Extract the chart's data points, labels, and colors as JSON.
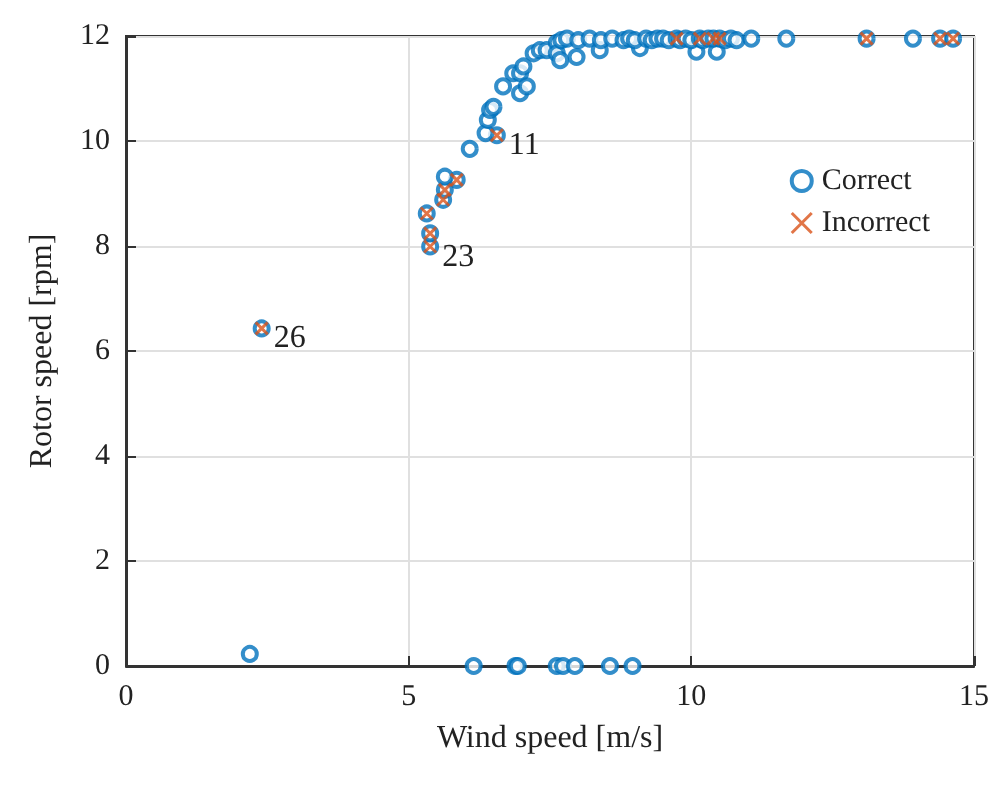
{
  "chart_data": {
    "type": "scatter",
    "xlabel": "Wind speed [m/s]",
    "ylabel": "Rotor speed [rpm]",
    "xlim": [
      0,
      15
    ],
    "xticks": [
      0,
      5,
      10,
      15
    ],
    "ylim": [
      0,
      12
    ],
    "yticks": [
      0,
      2,
      4,
      6,
      8,
      10,
      12
    ],
    "grid": true,
    "legend": "right",
    "series": [
      {
        "name": "Correct",
        "color": "#0072bd",
        "marker": "circle",
        "x": [
          2.19,
          6.15,
          6.89,
          6.93,
          7.62,
          7.73,
          7.94,
          8.56,
          8.96,
          2.4,
          5.38,
          5.38,
          5.32,
          5.61,
          5.64,
          5.85,
          5.64,
          6.56,
          6.08,
          6.36,
          6.4,
          6.44,
          6.5,
          6.67,
          6.85,
          6.97,
          7.03,
          6.97,
          7.09,
          7.21,
          7.32,
          7.44,
          7.62,
          7.62,
          7.68,
          7.97,
          8.38,
          9.09,
          10.09,
          10.45,
          7.7,
          7.8,
          8.0,
          8.2,
          8.4,
          8.6,
          8.8,
          8.9,
          9.0,
          9.2,
          9.3,
          9.4,
          9.5,
          9.6,
          9.74,
          9.8,
          9.9,
          10.0,
          10.15,
          10.2,
          10.3,
          10.39,
          10.5,
          10.6,
          10.7,
          10.8,
          11.06,
          11.68,
          13.1,
          13.92,
          14.4,
          14.63
        ],
        "values": [
          0.23,
          0,
          0,
          0,
          0,
          0,
          0,
          0,
          0,
          6.43,
          7.99,
          8.24,
          8.62,
          8.88,
          9.07,
          9.26,
          9.32,
          10.11,
          9.85,
          10.15,
          10.4,
          10.59,
          10.65,
          11.04,
          11.29,
          11.29,
          11.42,
          10.91,
          11.04,
          11.67,
          11.73,
          11.73,
          11.87,
          11.67,
          11.54,
          11.6,
          11.73,
          11.77,
          11.7,
          11.7,
          11.92,
          11.95,
          11.92,
          11.95,
          11.92,
          11.95,
          11.92,
          11.95,
          11.92,
          11.95,
          11.92,
          11.95,
          11.95,
          11.92,
          11.95,
          11.92,
          11.95,
          11.92,
          11.95,
          11.92,
          11.95,
          11.95,
          11.95,
          11.92,
          11.95,
          11.92,
          11.95,
          11.95,
          11.95,
          11.95,
          11.95,
          11.95
        ]
      },
      {
        "name": "Incorrect",
        "color": "#d95319",
        "marker": "cross",
        "x": [
          2.4,
          5.38,
          5.38,
          5.32,
          5.61,
          5.64,
          5.85,
          6.56,
          9.74,
          10.15,
          10.39,
          10.5,
          13.1,
          14.4,
          14.63
        ],
        "values": [
          6.43,
          7.99,
          8.24,
          8.62,
          8.88,
          9.07,
          9.26,
          10.11,
          11.95,
          11.95,
          11.95,
          11.95,
          11.95,
          11.95,
          11.95
        ]
      }
    ],
    "annotations": [
      {
        "text": "26",
        "x": 2.4,
        "y": 6.43
      },
      {
        "text": "23",
        "x": 5.38,
        "y": 7.99
      },
      {
        "text": "11",
        "x": 6.56,
        "y": 10.11
      }
    ]
  }
}
